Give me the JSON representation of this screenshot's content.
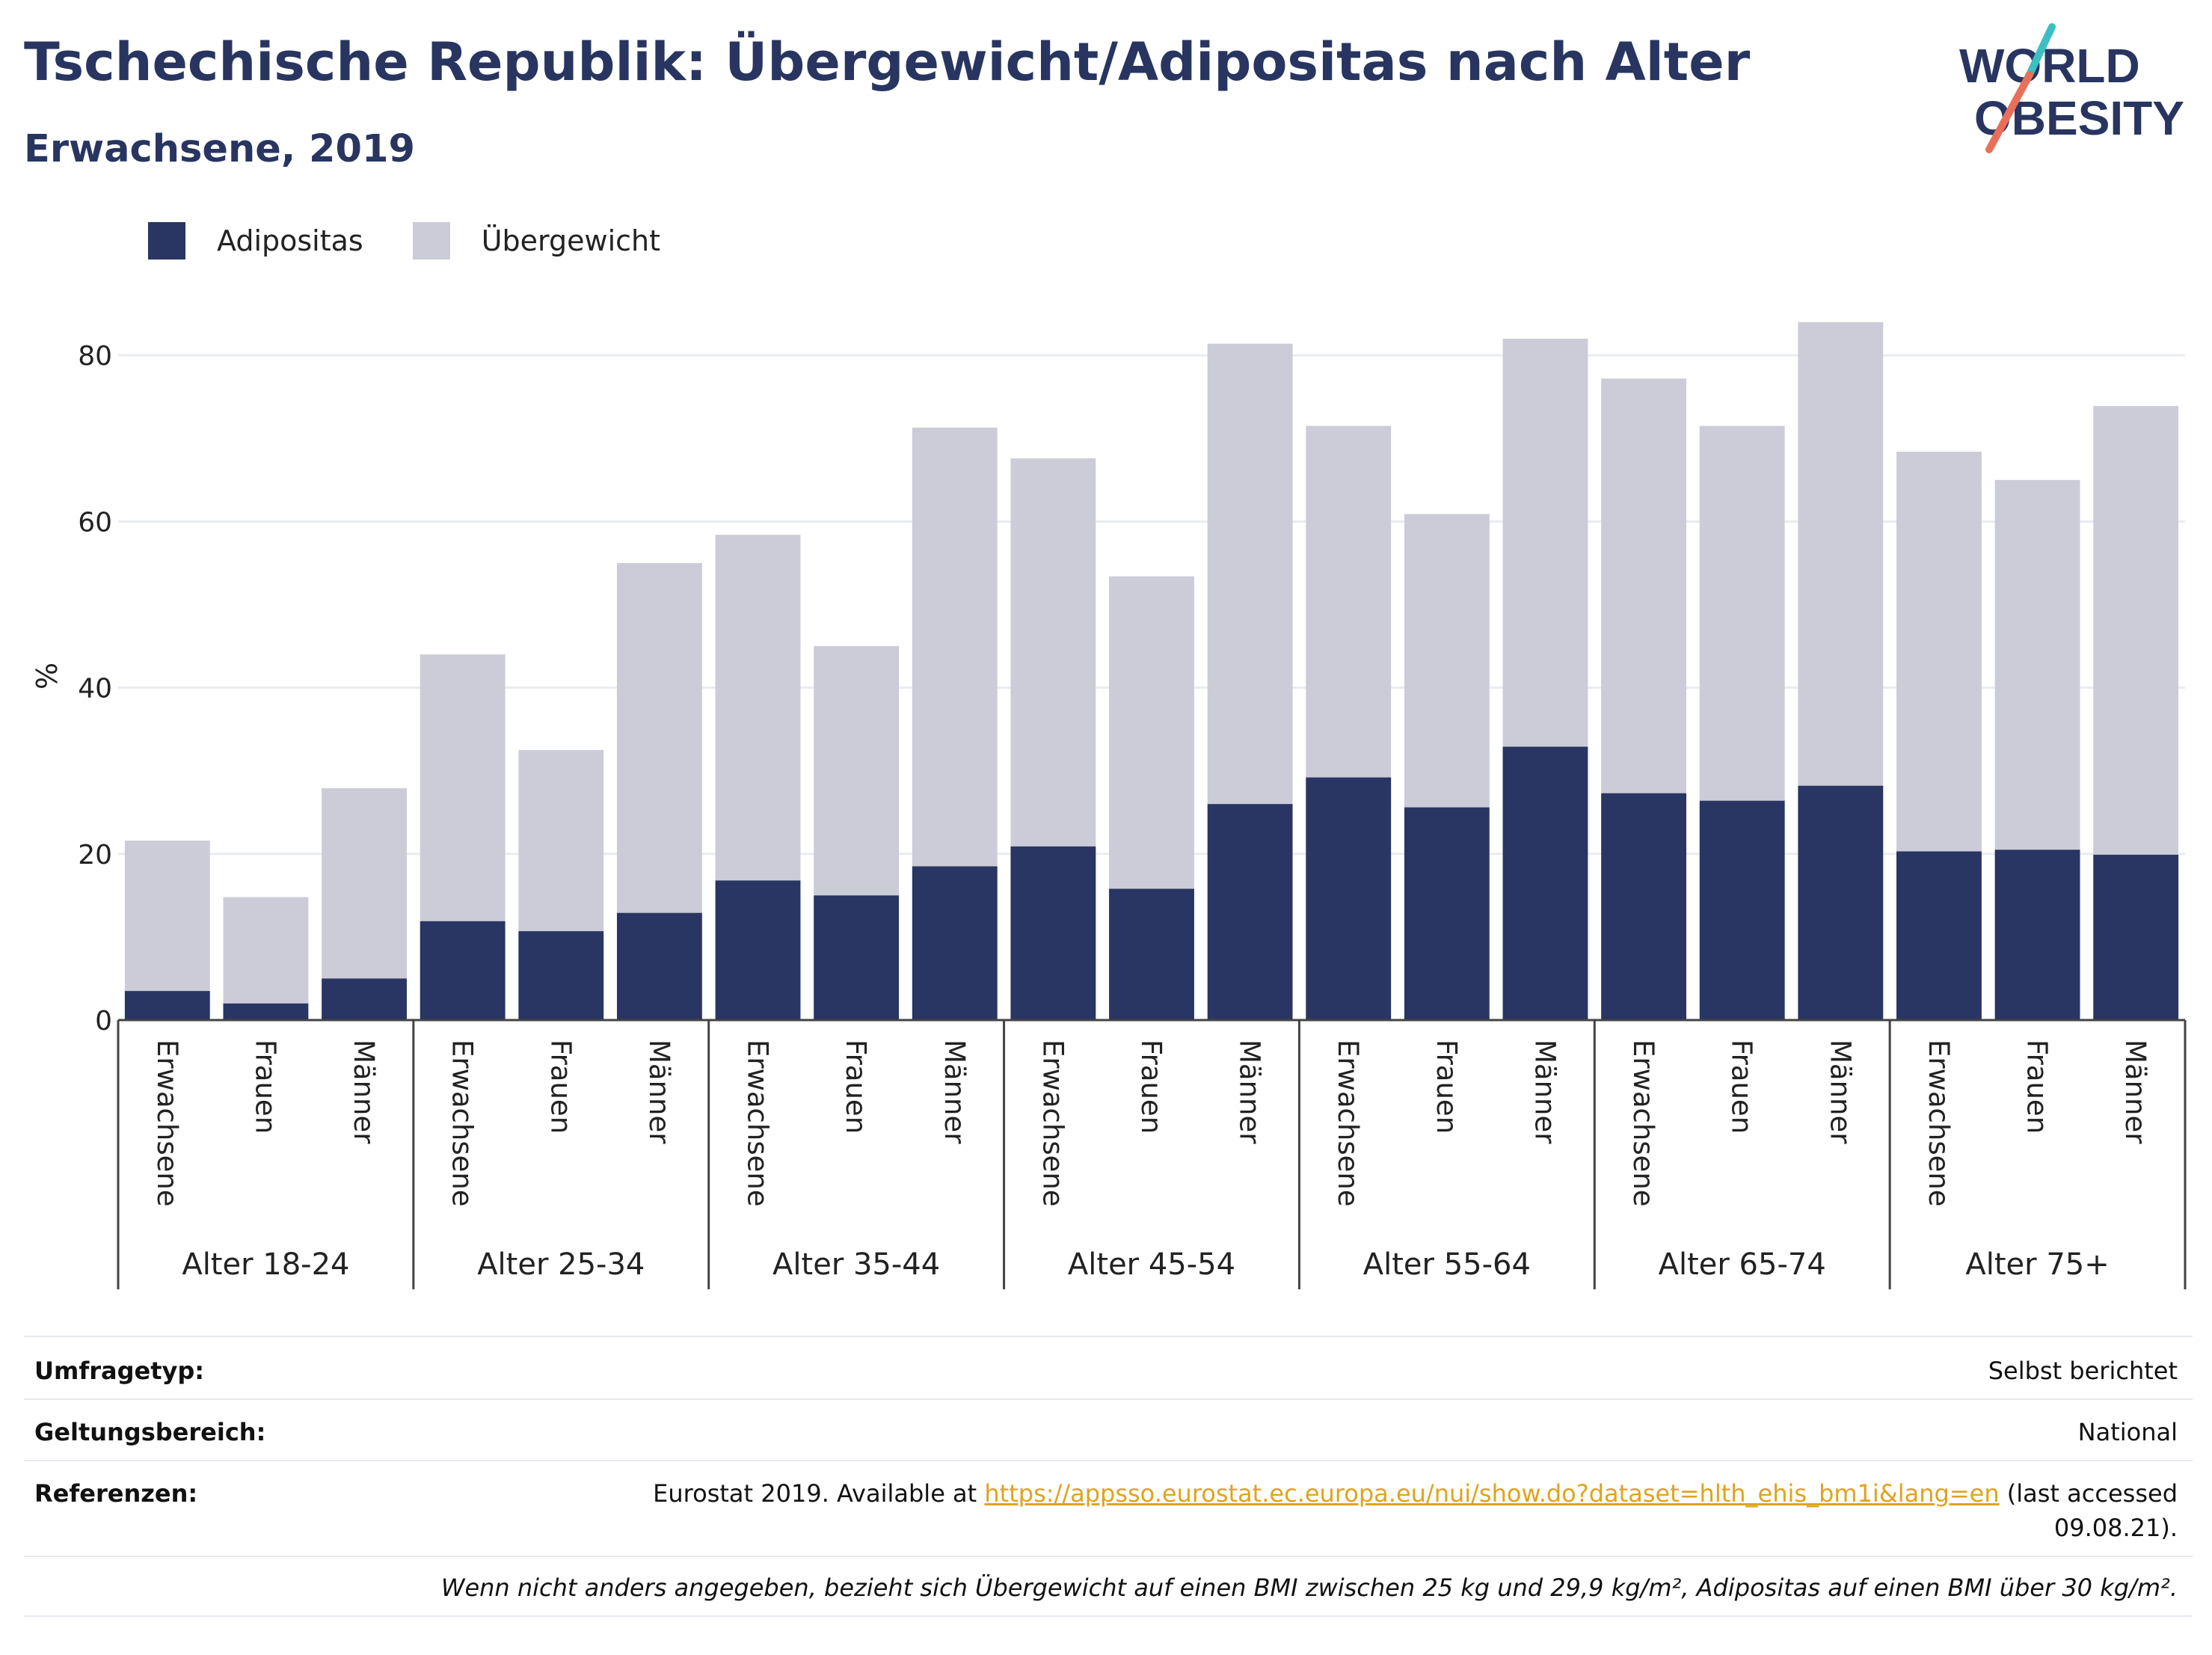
{
  "header": {
    "title": "Tschechische Republik: Übergewicht/Adipositas nach Alter",
    "subtitle": "Erwachsene, 2019",
    "logo_line1": "WORLD",
    "logo_line2": "OBESITY"
  },
  "colors": {
    "adipositas": "#293562",
    "uebergewicht": "#cbccd8",
    "title": "#283560",
    "logo_teal": "#3bbfc3",
    "logo_coral": "#e8705a",
    "link": "#e0a31f"
  },
  "chart_data": {
    "type": "bar",
    "stacked": true,
    "ylabel": "%",
    "ylim": [
      0,
      90
    ],
    "yticks": [
      0,
      20,
      40,
      60,
      80
    ],
    "grid": true,
    "legend_position": "top-left",
    "groups": [
      "Alter 18-24",
      "Alter 25-34",
      "Alter 35-44",
      "Alter 45-54",
      "Alter 55-64",
      "Alter 65-74",
      "Alter 75+"
    ],
    "subcategories": [
      "Erwachsene",
      "Frauen",
      "Männer"
    ],
    "series": [
      {
        "name": "Adipositas",
        "values": [
          3.5,
          2.0,
          5.0,
          11.9,
          10.7,
          12.9,
          16.8,
          15.0,
          18.5,
          20.9,
          15.8,
          26.0,
          29.2,
          25.6,
          32.9,
          27.3,
          26.4,
          28.2,
          20.3,
          20.5,
          19.9
        ]
      },
      {
        "name": "Übergewicht",
        "values": [
          18.1,
          12.8,
          22.9,
          32.1,
          21.8,
          42.1,
          41.6,
          30.0,
          52.8,
          46.7,
          37.6,
          55.4,
          42.3,
          35.3,
          49.1,
          49.9,
          45.1,
          55.8,
          48.1,
          44.5,
          54.0
        ]
      }
    ]
  },
  "info": {
    "survey_label": "Umfragetyp:",
    "survey_value": "Selbst berichtet",
    "scope_label": "Geltungsbereich:",
    "scope_value": "National",
    "ref_label": "Referenzen:",
    "ref_prefix": "Eurostat 2019. Available at ",
    "ref_link": "https://appsso.eurostat.ec.europa.eu/nui/show.do?dataset=hlth_ehis_bm1i&lang=en",
    "ref_suffix": " (last accessed",
    "ref_date": "09.08.21).",
    "note": "Wenn nicht anders angegeben, bezieht sich Übergewicht auf einen BMI zwischen 25 kg und 29,9 kg/m², Adipositas auf einen BMI über 30 kg/m²."
  }
}
